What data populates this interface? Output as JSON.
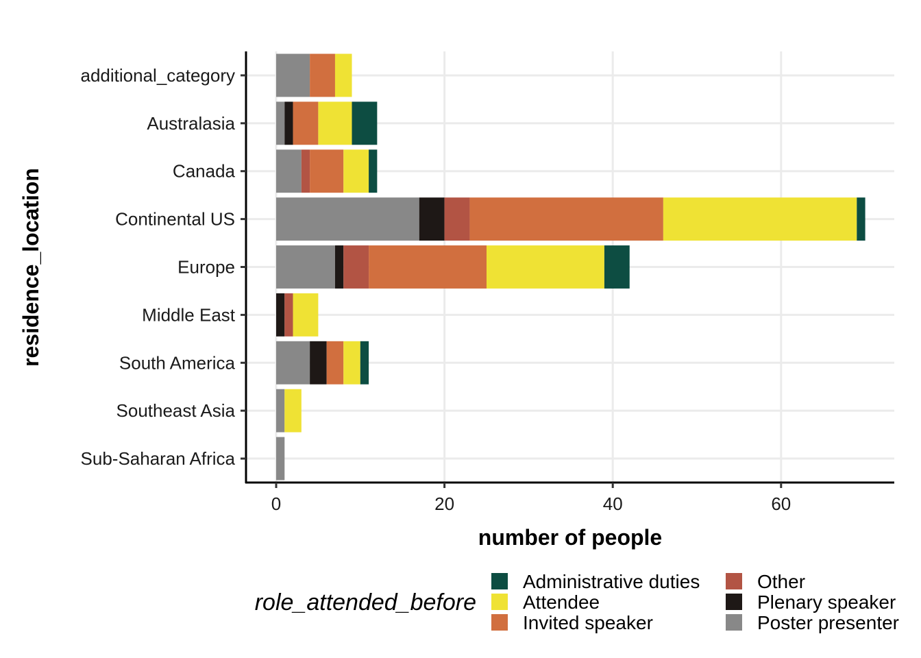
{
  "chart_data": {
    "type": "bar",
    "orientation": "horizontal",
    "stacked": true,
    "xlabel": "number of people",
    "ylabel": "residence_location",
    "xlim": [
      -3.5,
      73.5
    ],
    "x_ticks": [
      0,
      20,
      40,
      60
    ],
    "grid": true,
    "legend_position": "bottom",
    "legend_title": "role_attended_before",
    "categories": [
      "Sub-Saharan Africa",
      "Southeast Asia",
      "South America",
      "Middle East",
      "Europe",
      "Continental US",
      "Canada",
      "Australasia",
      "additional_category"
    ],
    "series": [
      {
        "name": "Poster presenter",
        "color": "#888888",
        "values": [
          1,
          1,
          4,
          0,
          7,
          17,
          3,
          1,
          4
        ]
      },
      {
        "name": "Plenary speaker",
        "color": "#1e1816",
        "values": [
          0,
          0,
          2,
          1,
          1,
          3,
          0,
          1,
          0
        ]
      },
      {
        "name": "Other",
        "color": "#b25444",
        "values": [
          0,
          0,
          0,
          1,
          3,
          3,
          1,
          0,
          0
        ]
      },
      {
        "name": "Invited speaker",
        "color": "#d16f3f",
        "values": [
          0,
          0,
          2,
          0,
          14,
          23,
          4,
          3,
          3
        ]
      },
      {
        "name": "Attendee",
        "color": "#efe234",
        "values": [
          0,
          2,
          2,
          3,
          14,
          23,
          3,
          4,
          2
        ]
      },
      {
        "name": "Administrative duties",
        "color": "#0d4d42",
        "values": [
          0,
          0,
          1,
          0,
          3,
          1,
          1,
          3,
          0
        ]
      }
    ],
    "legend_order": [
      "Administrative duties",
      "Attendee",
      "Invited speaker",
      "Other",
      "Plenary speaker",
      "Poster presenter"
    ]
  }
}
